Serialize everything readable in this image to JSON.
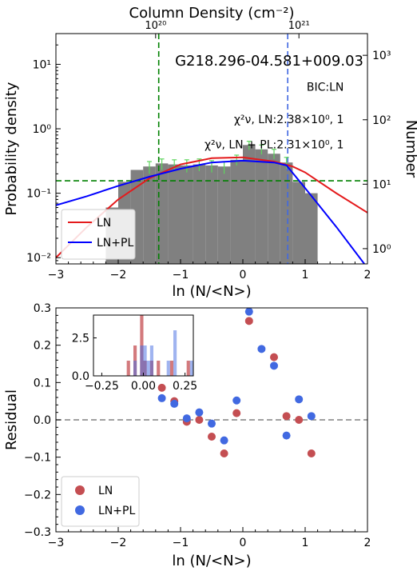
{
  "chart_data": [
    {
      "type": "bar",
      "title": "G218.296-04.581+009.03",
      "top_axis_label": "Column Density (cm⁻²)",
      "top_ticks": [
        {
          "label": "10²⁰",
          "x": -1.4
        },
        {
          "label": "10²¹",
          "x": 0.9
        }
      ],
      "xlabel": "ln (N/<N>)",
      "ylabel": "Probability density",
      "ylabel_right": "Number",
      "xlim": [
        -3,
        2
      ],
      "ylim": [
        0.008,
        30
      ],
      "yscale": "log",
      "x_ticks": [
        -3,
        -2,
        -1,
        0,
        1,
        2
      ],
      "y_ticks_left": [
        {
          "v": 0.01,
          "label": "10⁻²"
        },
        {
          "v": 0.1,
          "label": "10⁻¹"
        },
        {
          "v": 1,
          "label": "10⁰"
        },
        {
          "v": 10,
          "label": "10¹"
        }
      ],
      "y_ticks_right": [
        {
          "v": 0.0138,
          "label": "10⁰"
        },
        {
          "v": 0.138,
          "label": "10¹"
        },
        {
          "v": 1.38,
          "label": "10²"
        },
        {
          "v": 13.8,
          "label": "10³"
        }
      ],
      "annotations": [
        {
          "label": "BIC:LN",
          "x": 1.62,
          "y": 3.9
        },
        {
          "label": "χ²ν, LN:2.38×10⁰, 1",
          "x": 1.62,
          "y": 1.22
        },
        {
          "label": "χ²ν, LN + PL:2.31×10⁰, 1",
          "x": 1.62,
          "y": 0.5
        }
      ],
      "histogram": {
        "bin_width": 0.2,
        "bins": [
          {
            "x": -2.1,
            "y": 0.06
          },
          {
            "x": -1.9,
            "y": 0.15
          },
          {
            "x": -1.7,
            "y": 0.23
          },
          {
            "x": -1.5,
            "y": 0.26
          },
          {
            "x": -1.3,
            "y": 0.29
          },
          {
            "x": -1.1,
            "y": 0.28
          },
          {
            "x": -0.9,
            "y": 0.27
          },
          {
            "x": -0.7,
            "y": 0.28
          },
          {
            "x": -0.5,
            "y": 0.27
          },
          {
            "x": -0.3,
            "y": 0.26
          },
          {
            "x": -0.1,
            "y": 0.33
          },
          {
            "x": 0.1,
            "y": 0.56
          },
          {
            "x": 0.3,
            "y": 0.48
          },
          {
            "x": 0.5,
            "y": 0.41
          },
          {
            "x": 0.7,
            "y": 0.3
          },
          {
            "x": 0.9,
            "y": 0.15
          },
          {
            "x": 1.1,
            "y": 0.1
          }
        ],
        "color": "#808080"
      },
      "errorbars": [
        {
          "x": -1.5,
          "lo": 0.2,
          "hi": 0.31
        },
        {
          "x": -1.3,
          "lo": 0.23,
          "hi": 0.34
        },
        {
          "x": -1.1,
          "lo": 0.22,
          "hi": 0.33
        },
        {
          "x": -0.9,
          "lo": 0.21,
          "hi": 0.33
        },
        {
          "x": -0.7,
          "lo": 0.22,
          "hi": 0.34
        },
        {
          "x": -0.5,
          "lo": 0.21,
          "hi": 0.32
        },
        {
          "x": -0.3,
          "lo": 0.2,
          "hi": 0.31
        },
        {
          "x": -0.1,
          "lo": 0.27,
          "hi": 0.39
        },
        {
          "x": 0.1,
          "lo": 0.47,
          "hi": 0.64
        },
        {
          "x": 0.3,
          "lo": 0.4,
          "hi": 0.56
        },
        {
          "x": 0.5,
          "lo": 0.34,
          "hi": 0.48
        },
        {
          "x": 0.7,
          "lo": 0.24,
          "hi": 0.36
        }
      ],
      "series": [
        {
          "name": "LN",
          "color": "#e41a1c",
          "x": [
            -3,
            -2.5,
            -2,
            -1.5,
            -1,
            -0.5,
            0,
            0.5,
            0.8,
            1,
            1.5,
            2
          ],
          "y": [
            0.01,
            0.03,
            0.08,
            0.17,
            0.28,
            0.35,
            0.36,
            0.31,
            0.26,
            0.21,
            0.1,
            0.05
          ]
        },
        {
          "name": "LN+PL",
          "color": "#0000ff",
          "x": [
            -3,
            -2.5,
            -2,
            -1.5,
            -1,
            -0.5,
            0,
            0.5,
            0.7,
            1,
            1.5,
            1.95
          ],
          "y": [
            0.065,
            0.09,
            0.13,
            0.18,
            0.24,
            0.3,
            0.32,
            0.3,
            0.27,
            0.12,
            0.03,
            0.008
          ]
        }
      ],
      "vlines": [
        {
          "x": -1.35,
          "color": "#008000",
          "style": "dashed"
        },
        {
          "x": 0.72,
          "color": "#4169e1",
          "style": "dashed"
        }
      ],
      "hlines": [
        {
          "y": 0.156,
          "color": "#008000",
          "style": "dashed"
        }
      ],
      "legend_position": "lower-left"
    },
    {
      "type": "scatter",
      "xlabel": "ln (N/<N>)",
      "ylabel": "Residual",
      "xlim": [
        -3,
        2
      ],
      "ylim": [
        -0.3,
        0.3
      ],
      "x_ticks": [
        -3,
        -2,
        -1,
        0,
        1,
        2
      ],
      "y_ticks": [
        {
          "v": -0.3,
          "label": "−0.3"
        },
        {
          "v": -0.2,
          "label": "−0.2"
        },
        {
          "v": -0.1,
          "label": "−0.1"
        },
        {
          "v": 0,
          "label": "0.0"
        },
        {
          "v": 0.1,
          "label": "0.1"
        },
        {
          "v": 0.2,
          "label": "0.2"
        },
        {
          "v": 0.3,
          "label": "0.3"
        }
      ],
      "hlines": [
        {
          "y": 0,
          "color": "#808080",
          "style": "dashed"
        }
      ],
      "series": [
        {
          "name": "LN",
          "color": "#c44e52",
          "x": [
            -1.3,
            -1.1,
            -0.9,
            -0.7,
            -0.5,
            -0.3,
            -0.1,
            0.1,
            0.5,
            0.7,
            0.9,
            1.1
          ],
          "y": [
            0.086,
            0.05,
            -0.005,
            0.0,
            -0.045,
            -0.09,
            0.018,
            0.265,
            0.168,
            0.01,
            0.0,
            -0.09
          ]
        },
        {
          "name": "LN+PL",
          "color": "#4169e1",
          "x": [
            -1.3,
            -1.1,
            -0.9,
            -0.7,
            -0.5,
            -0.3,
            -0.1,
            0.1,
            0.3,
            0.5,
            0.7,
            0.9,
            1.1
          ],
          "y": [
            0.058,
            0.043,
            0.004,
            0.02,
            -0.01,
            -0.055,
            0.052,
            0.29,
            0.19,
            0.145,
            -0.042,
            0.055,
            0.01
          ]
        }
      ],
      "legend_position": "lower-left",
      "inset": {
        "type": "histogram",
        "xlim": [
          -0.3,
          0.3
        ],
        "ylim": [
          0,
          4
        ],
        "x_ticks": [
          {
            "v": -0.25,
            "label": "−0.25"
          },
          {
            "v": 0,
            "label": "0.00"
          },
          {
            "v": 0.25,
            "label": "0.25"
          }
        ],
        "y_ticks": [
          {
            "v": 0,
            "label": "0.0"
          },
          {
            "v": 2.5,
            "label": "2.5"
          }
        ],
        "bin_width": 0.02,
        "series": [
          {
            "name": "LN",
            "color": "#c44e52",
            "opacity": 0.75,
            "bins": [
              {
                "x": -0.09,
                "y": 1
              },
              {
                "x": -0.05,
                "y": 2
              },
              {
                "x": -0.01,
                "y": 4
              },
              {
                "x": 0.01,
                "y": 1
              },
              {
                "x": 0.05,
                "y": 1
              },
              {
                "x": 0.09,
                "y": 1
              },
              {
                "x": 0.17,
                "y": 1
              },
              {
                "x": 0.27,
                "y": 1
              }
            ]
          },
          {
            "name": "LN+PL",
            "color": "#4169e1",
            "opacity": 0.5,
            "bins": [
              {
                "x": -0.05,
                "y": 1
              },
              {
                "x": -0.01,
                "y": 2
              },
              {
                "x": 0.01,
                "y": 2
              },
              {
                "x": 0.03,
                "y": 1
              },
              {
                "x": 0.05,
                "y": 2
              },
              {
                "x": 0.15,
                "y": 1
              },
              {
                "x": 0.19,
                "y": 3
              },
              {
                "x": 0.29,
                "y": 1
              }
            ]
          }
        ]
      }
    }
  ]
}
